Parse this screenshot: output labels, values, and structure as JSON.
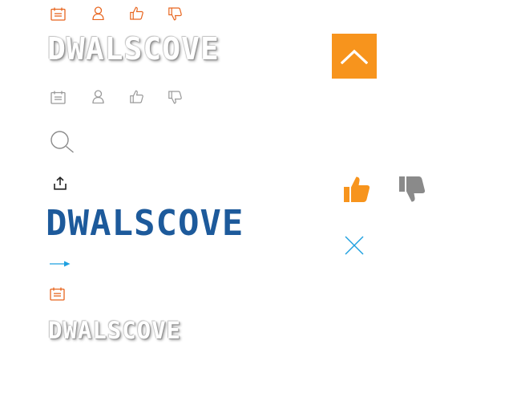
{
  "colors": {
    "accent_orange": "#f7941d",
    "icon_orange": "#e8651e",
    "icon_gray": "#999999",
    "brand_blue": "#1d5a9b",
    "arrow_blue": "#1ea0e0",
    "thumb_gray": "#8a8a8a"
  },
  "meta_rows": [
    {
      "icons": [
        "calendar-icon",
        "user-icon",
        "thumbs-up-icon",
        "thumbs-down-icon"
      ],
      "color": "#e8651e"
    },
    {
      "icons": [
        "calendar-icon",
        "user-icon",
        "thumbs-up-icon",
        "thumbs-down-icon"
      ],
      "color": "#999999"
    }
  ],
  "logos": {
    "outline_large": "DWALSCOVE",
    "blue": "DWALSCOVE",
    "outline_small": "DWALSCOVE"
  },
  "actions": {
    "search": "search-icon",
    "share": "share-icon",
    "arrow": "arrow-right-icon",
    "calendar": "calendar-icon",
    "back_to_top": "chevron-up-icon",
    "like": "thumbs-up-icon",
    "dislike": "thumbs-down-icon",
    "close": "close-icon"
  }
}
